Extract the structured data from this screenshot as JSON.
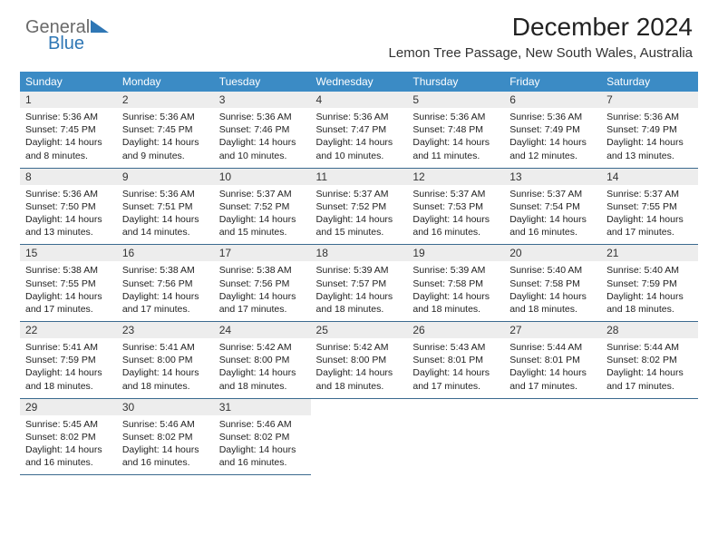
{
  "logo": {
    "text1": "General",
    "text2": "Blue",
    "text1_color": "#6a6a6a",
    "text2_color": "#2f77b5",
    "triangle_color": "#2f77b5"
  },
  "header": {
    "title": "December 2024",
    "location": "Lemon Tree Passage, New South Wales, Australia"
  },
  "style": {
    "header_bg": "#3b8bc5",
    "daynum_bg": "#ededed",
    "border_color": "#3b6a8f"
  },
  "day_names": [
    "Sunday",
    "Monday",
    "Tuesday",
    "Wednesday",
    "Thursday",
    "Friday",
    "Saturday"
  ],
  "weeks": [
    [
      {
        "num": "1",
        "sunrise": "5:36 AM",
        "sunset": "7:45 PM",
        "daylight": "14 hours and 8 minutes."
      },
      {
        "num": "2",
        "sunrise": "5:36 AM",
        "sunset": "7:45 PM",
        "daylight": "14 hours and 9 minutes."
      },
      {
        "num": "3",
        "sunrise": "5:36 AM",
        "sunset": "7:46 PM",
        "daylight": "14 hours and 10 minutes."
      },
      {
        "num": "4",
        "sunrise": "5:36 AM",
        "sunset": "7:47 PM",
        "daylight": "14 hours and 10 minutes."
      },
      {
        "num": "5",
        "sunrise": "5:36 AM",
        "sunset": "7:48 PM",
        "daylight": "14 hours and 11 minutes."
      },
      {
        "num": "6",
        "sunrise": "5:36 AM",
        "sunset": "7:49 PM",
        "daylight": "14 hours and 12 minutes."
      },
      {
        "num": "7",
        "sunrise": "5:36 AM",
        "sunset": "7:49 PM",
        "daylight": "14 hours and 13 minutes."
      }
    ],
    [
      {
        "num": "8",
        "sunrise": "5:36 AM",
        "sunset": "7:50 PM",
        "daylight": "14 hours and 13 minutes."
      },
      {
        "num": "9",
        "sunrise": "5:36 AM",
        "sunset": "7:51 PM",
        "daylight": "14 hours and 14 minutes."
      },
      {
        "num": "10",
        "sunrise": "5:37 AM",
        "sunset": "7:52 PM",
        "daylight": "14 hours and 15 minutes."
      },
      {
        "num": "11",
        "sunrise": "5:37 AM",
        "sunset": "7:52 PM",
        "daylight": "14 hours and 15 minutes."
      },
      {
        "num": "12",
        "sunrise": "5:37 AM",
        "sunset": "7:53 PM",
        "daylight": "14 hours and 16 minutes."
      },
      {
        "num": "13",
        "sunrise": "5:37 AM",
        "sunset": "7:54 PM",
        "daylight": "14 hours and 16 minutes."
      },
      {
        "num": "14",
        "sunrise": "5:37 AM",
        "sunset": "7:55 PM",
        "daylight": "14 hours and 17 minutes."
      }
    ],
    [
      {
        "num": "15",
        "sunrise": "5:38 AM",
        "sunset": "7:55 PM",
        "daylight": "14 hours and 17 minutes."
      },
      {
        "num": "16",
        "sunrise": "5:38 AM",
        "sunset": "7:56 PM",
        "daylight": "14 hours and 17 minutes."
      },
      {
        "num": "17",
        "sunrise": "5:38 AM",
        "sunset": "7:56 PM",
        "daylight": "14 hours and 17 minutes."
      },
      {
        "num": "18",
        "sunrise": "5:39 AM",
        "sunset": "7:57 PM",
        "daylight": "14 hours and 18 minutes."
      },
      {
        "num": "19",
        "sunrise": "5:39 AM",
        "sunset": "7:58 PM",
        "daylight": "14 hours and 18 minutes."
      },
      {
        "num": "20",
        "sunrise": "5:40 AM",
        "sunset": "7:58 PM",
        "daylight": "14 hours and 18 minutes."
      },
      {
        "num": "21",
        "sunrise": "5:40 AM",
        "sunset": "7:59 PM",
        "daylight": "14 hours and 18 minutes."
      }
    ],
    [
      {
        "num": "22",
        "sunrise": "5:41 AM",
        "sunset": "7:59 PM",
        "daylight": "14 hours and 18 minutes."
      },
      {
        "num": "23",
        "sunrise": "5:41 AM",
        "sunset": "8:00 PM",
        "daylight": "14 hours and 18 minutes."
      },
      {
        "num": "24",
        "sunrise": "5:42 AM",
        "sunset": "8:00 PM",
        "daylight": "14 hours and 18 minutes."
      },
      {
        "num": "25",
        "sunrise": "5:42 AM",
        "sunset": "8:00 PM",
        "daylight": "14 hours and 18 minutes."
      },
      {
        "num": "26",
        "sunrise": "5:43 AM",
        "sunset": "8:01 PM",
        "daylight": "14 hours and 17 minutes."
      },
      {
        "num": "27",
        "sunrise": "5:44 AM",
        "sunset": "8:01 PM",
        "daylight": "14 hours and 17 minutes."
      },
      {
        "num": "28",
        "sunrise": "5:44 AM",
        "sunset": "8:02 PM",
        "daylight": "14 hours and 17 minutes."
      }
    ],
    [
      {
        "num": "29",
        "sunrise": "5:45 AM",
        "sunset": "8:02 PM",
        "daylight": "14 hours and 16 minutes."
      },
      {
        "num": "30",
        "sunrise": "5:46 AM",
        "sunset": "8:02 PM",
        "daylight": "14 hours and 16 minutes."
      },
      {
        "num": "31",
        "sunrise": "5:46 AM",
        "sunset": "8:02 PM",
        "daylight": "14 hours and 16 minutes."
      },
      null,
      null,
      null,
      null
    ]
  ],
  "labels": {
    "sunrise": "Sunrise:",
    "sunset": "Sunset:",
    "daylight": "Daylight:"
  }
}
